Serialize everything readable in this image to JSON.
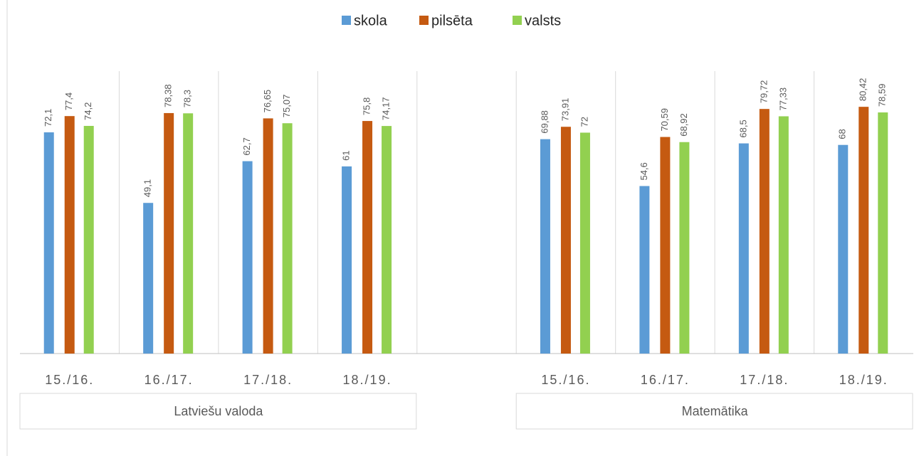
{
  "chart_data": {
    "type": "bar",
    "categories": [
      "15./16.",
      "16./17.",
      "17./18.",
      "18./19.",
      null,
      "15./16.",
      "16./17.",
      "17./18.",
      "18./19."
    ],
    "category_groups": [
      "Latviešu valoda",
      "Matemātika"
    ],
    "series": [
      {
        "name": "skola",
        "color": "#5b9bd5",
        "values": [
          72.1,
          49.1,
          62.7,
          61,
          null,
          69.88,
          54.6,
          68.5,
          68
        ],
        "value_labels": [
          "72,1",
          "49,1",
          "62,7",
          "61",
          null,
          "69,88",
          "54,6",
          "68,5",
          "68"
        ]
      },
      {
        "name": "pilsēta",
        "color": "#c55a11",
        "values": [
          77.4,
          78.38,
          76.65,
          75.8,
          null,
          73.91,
          70.59,
          79.72,
          80.42
        ],
        "value_labels": [
          "77,4",
          "78,38",
          "76,65",
          "75,8",
          null,
          "73,91",
          "70,59",
          "79,72",
          "80,42"
        ]
      },
      {
        "name": "valsts",
        "color": "#92d050",
        "values": [
          74.2,
          78.3,
          75.07,
          74.17,
          null,
          72,
          68.92,
          77.33,
          78.59
        ],
        "value_labels": [
          "74,2",
          "78,3",
          "75,07",
          "74,17",
          null,
          "72",
          "68,92",
          "77,33",
          "78,59"
        ]
      }
    ],
    "ylim": [
      0,
      100
    ]
  }
}
